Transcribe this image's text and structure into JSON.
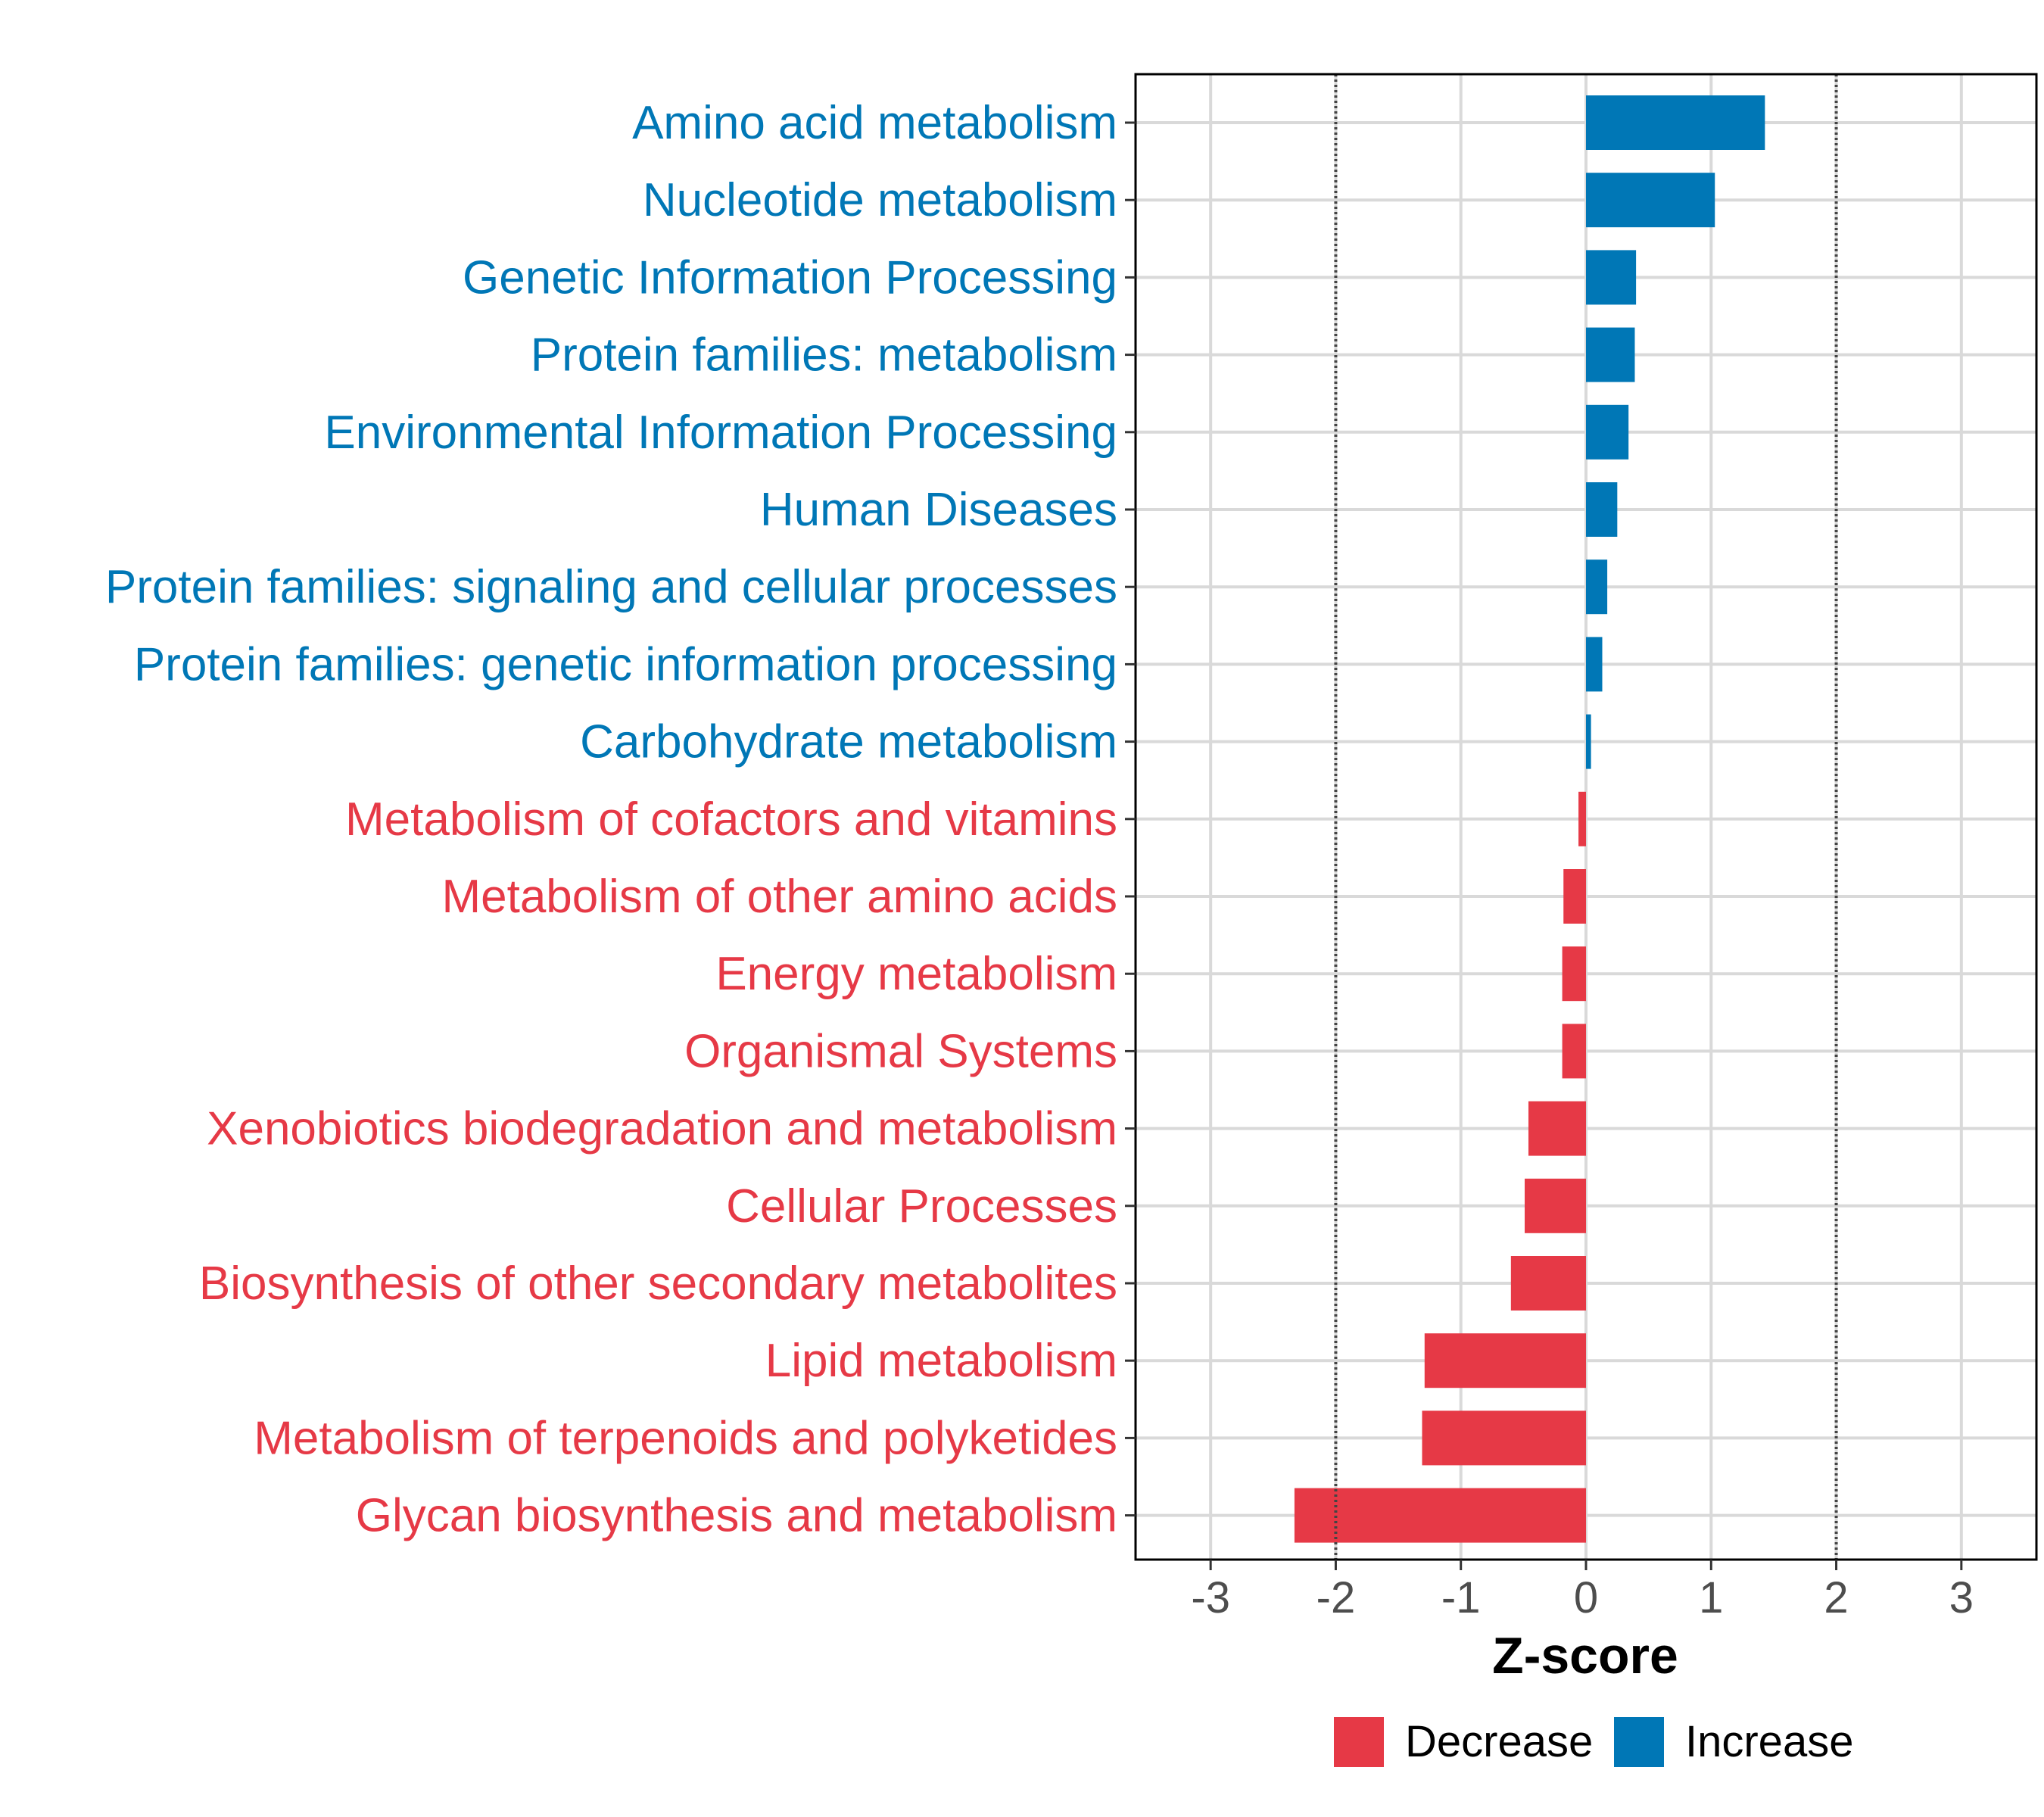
{
  "chart_data": {
    "type": "bar",
    "orientation": "horizontal",
    "title": "",
    "xlabel": "Z-score",
    "ylabel": "",
    "xlim": [
      -3.6,
      3.6
    ],
    "xticks": [
      -3,
      -2,
      -1,
      0,
      1,
      2,
      3
    ],
    "xtick_labels": [
      "-3",
      "-2",
      "-1",
      "0",
      "1",
      "2",
      "3"
    ],
    "reference_lines": [
      -2,
      2
    ],
    "grid": true,
    "legend_position": "bottom",
    "groups": [
      {
        "key": "decrease",
        "name": "Decrease",
        "color": "#E63946"
      },
      {
        "key": "increase",
        "name": "Increase",
        "color": "#0077B6"
      }
    ],
    "categories": [
      "Amino acid metabolism",
      "Nucleotide metabolism",
      "Genetic Information Processing",
      "Protein families: metabolism",
      "Environmental Information Processing",
      "Human Diseases",
      "Protein families: signaling and cellular processes",
      "Protein families: genetic information processing",
      "Carbohydrate metabolism",
      "Metabolism of cofactors and vitamins",
      "Metabolism of other amino acids",
      "Energy metabolism",
      "Organismal Systems",
      "Xenobiotics biodegradation and metabolism",
      "Cellular Processes",
      "Biosynthesis of other secondary metabolites",
      "Lipid metabolism",
      "Metabolism of terpenoids and polyketides",
      "Glycan biosynthesis and metabolism"
    ],
    "values": [
      1.43,
      1.03,
      0.4,
      0.39,
      0.34,
      0.25,
      0.17,
      0.13,
      0.04,
      -0.06,
      -0.18,
      -0.19,
      -0.19,
      -0.46,
      -0.49,
      -0.6,
      -1.29,
      -1.31,
      -2.33
    ]
  }
}
